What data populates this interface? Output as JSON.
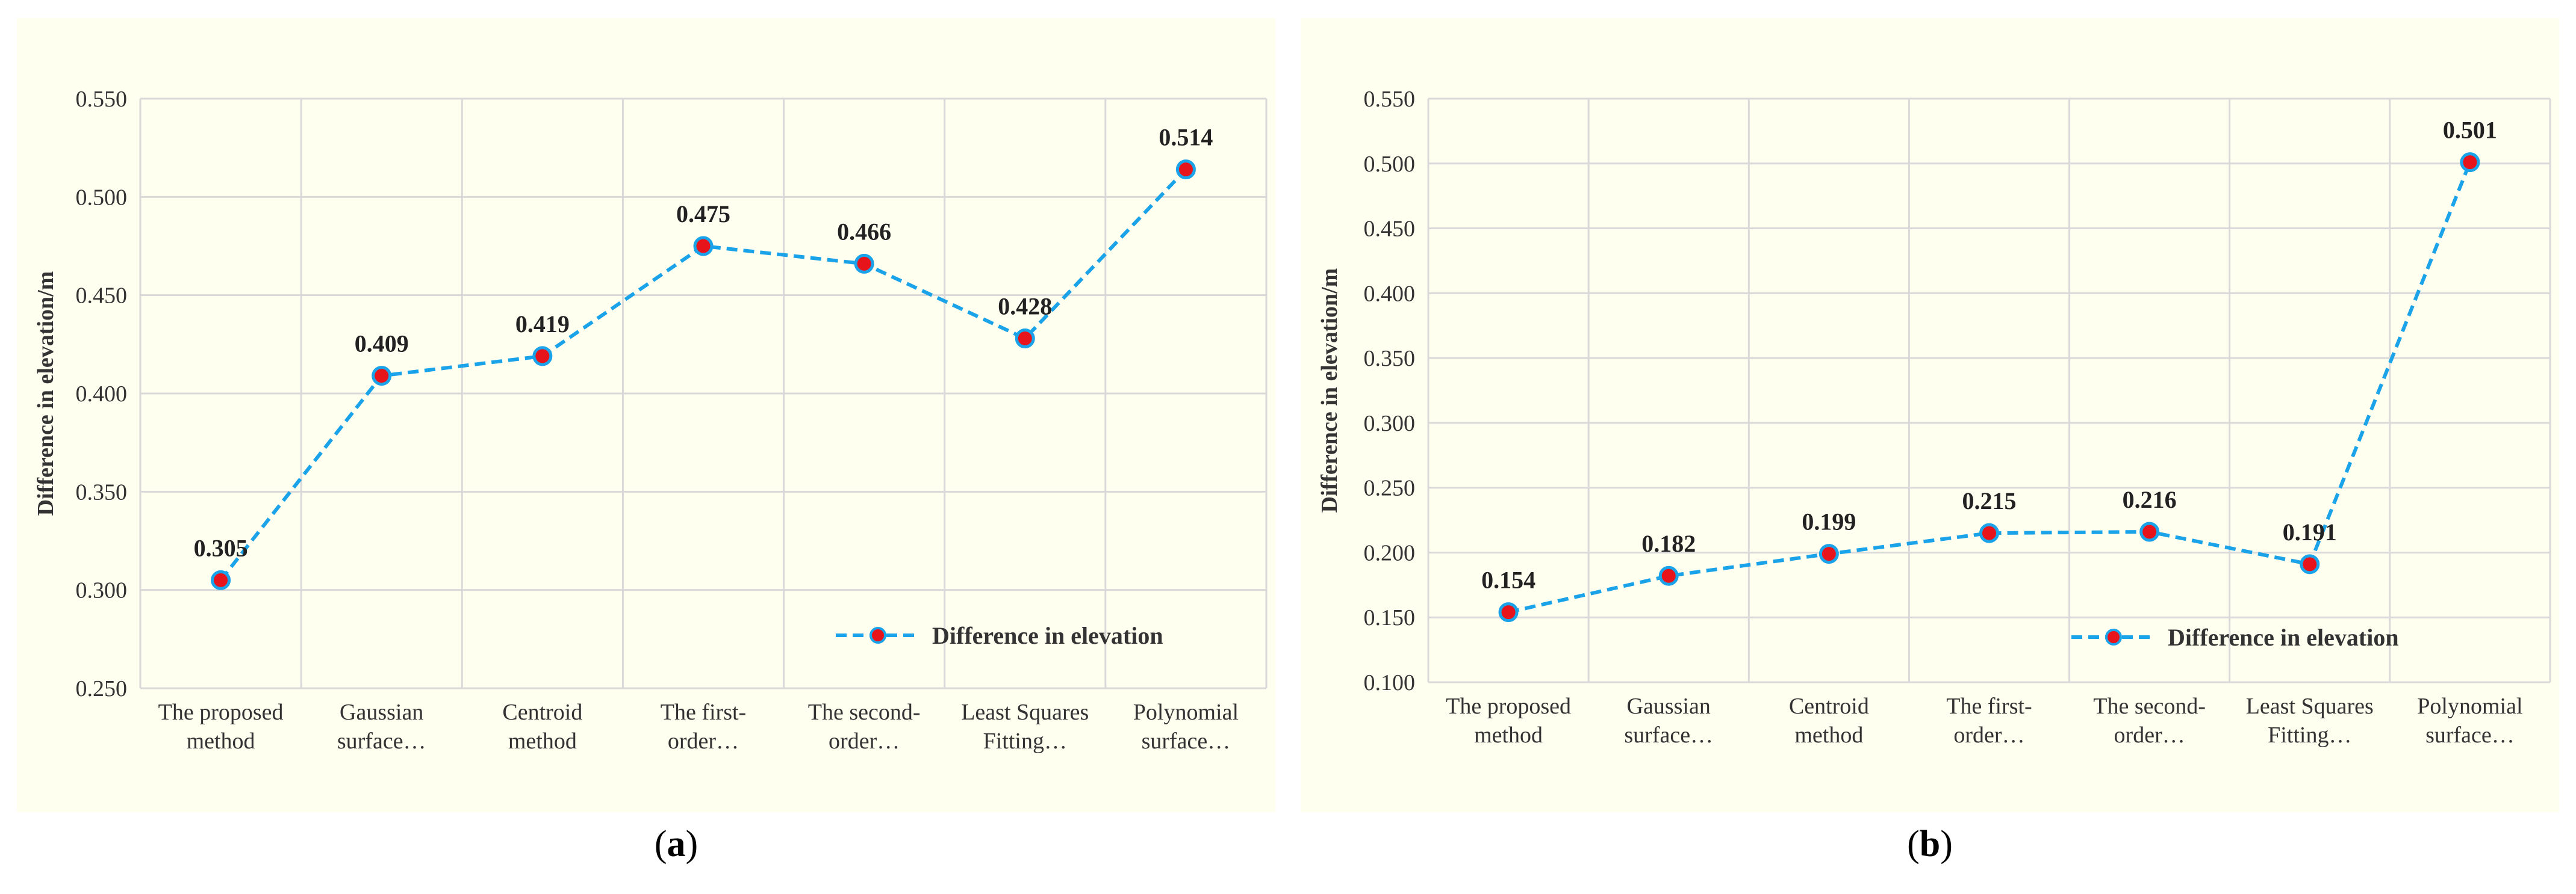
{
  "chart_data": [
    {
      "type": "line",
      "panel_label": "a",
      "title": "",
      "xlabel": "",
      "ylabel": "Difference in elevation/m",
      "ylim": [
        0.25,
        0.55
      ],
      "ytick_step": 0.05,
      "yticks": [
        "0.250",
        "0.300",
        "0.350",
        "0.400",
        "0.450",
        "0.500",
        "0.550"
      ],
      "categories": [
        [
          "The proposed",
          "method"
        ],
        [
          "Gaussian",
          "surface…"
        ],
        [
          "Centroid",
          "method"
        ],
        [
          "The first-",
          "order…"
        ],
        [
          "The second-",
          "order…"
        ],
        [
          "Least Squares",
          "Fitting…"
        ],
        [
          "Polynomial",
          "surface…"
        ]
      ],
      "series": [
        {
          "name": "Difference in elevation",
          "values": [
            0.305,
            0.409,
            0.419,
            0.475,
            0.466,
            0.428,
            0.514
          ],
          "labels": [
            "0.305",
            "0.409",
            "0.419",
            "0.475",
            "0.466",
            "0.428",
            "0.514"
          ],
          "line_color": "#1aa3e8",
          "marker_color": "#e8141c"
        }
      ],
      "grid": true,
      "legend": "bottom-right"
    },
    {
      "type": "line",
      "panel_label": "b",
      "title": "",
      "xlabel": "",
      "ylabel": "Difference in elevation/m",
      "ylim": [
        0.1,
        0.55
      ],
      "ytick_step": 0.05,
      "yticks": [
        "0.100",
        "0.150",
        "0.200",
        "0.250",
        "0.300",
        "0.350",
        "0.400",
        "0.450",
        "0.500",
        "0.550"
      ],
      "categories": [
        [
          "The proposed",
          "method"
        ],
        [
          "Gaussian",
          "surface…"
        ],
        [
          "Centroid",
          "method"
        ],
        [
          "The first-",
          "order…"
        ],
        [
          "The second-",
          "order…"
        ],
        [
          "Least Squares",
          "Fitting…"
        ],
        [
          "Polynomial",
          "surface…"
        ]
      ],
      "series": [
        {
          "name": "Difference in elevation",
          "values": [
            0.154,
            0.182,
            0.199,
            0.215,
            0.216,
            0.191,
            0.501
          ],
          "labels": [
            "0.154",
            "0.182",
            "0.199",
            "0.215",
            "0.216",
            "0.191",
            "0.501"
          ],
          "line_color": "#1aa3e8",
          "marker_color": "#e8141c"
        }
      ],
      "grid": true,
      "legend": "bottom-right"
    }
  ]
}
